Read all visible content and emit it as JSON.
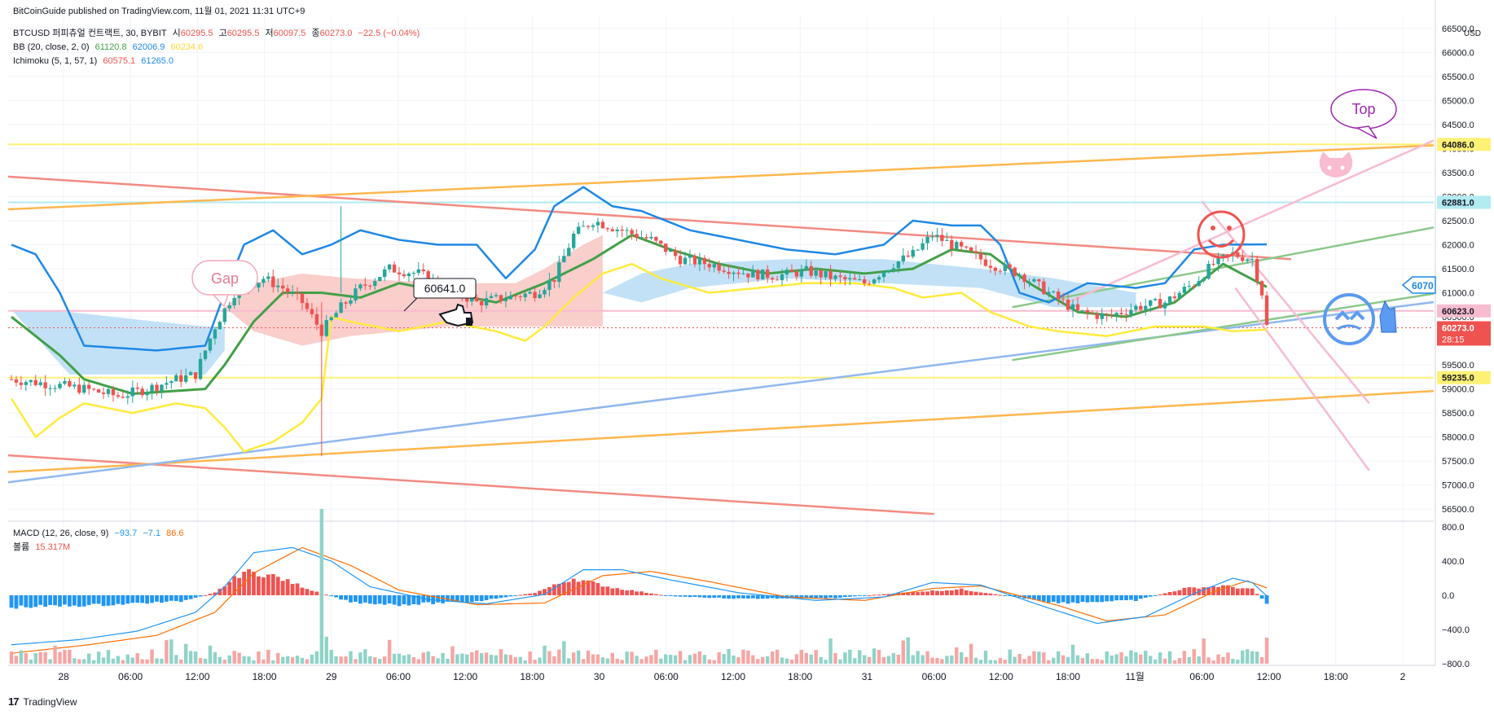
{
  "header": {
    "publish_line": "BitCoinGuide published on TradingView.com, 11월 01, 2021 11:31 UTC+9"
  },
  "main_legend": {
    "symbol": "BTCUSD 퍼피츄얼 컨트랙트, 30, BYBIT",
    "open_label": "시",
    "open": "60295.5",
    "high_label": "고",
    "high": "60295.5",
    "low_label": "저",
    "low": "60097.5",
    "close_label": "종",
    "close": "60273.0",
    "change": "−22.5 (−0.04%)"
  },
  "bb_legend": {
    "label": "BB (20, close, 2, 0)",
    "basis": "61120.8",
    "upper": "62006.9",
    "lower": "60234.6"
  },
  "ichimoku_legend": {
    "label": "Ichimoku (5, 1, 57, 1)",
    "lead1": "60575.1",
    "lead2": "61265.0"
  },
  "macd_legend": {
    "label": "MACD (12, 26, close, 9)",
    "hist": "−93.7",
    "macd": "−7.1",
    "signal": "86.6"
  },
  "volume_legend": {
    "label": "볼륨",
    "value": "15.317M"
  },
  "annotations": {
    "gap_label": "Gap",
    "top_label": "Top",
    "price_note": "60641.0",
    "partial_tag": "6070"
  },
  "footer": {
    "brand": "TradingView",
    "logo_text": "17"
  },
  "colors": {
    "up": "#26a69a",
    "down": "#ef5350",
    "bb_upper": "#1e88e5",
    "bb_basis": "#43a047",
    "bb_lower": "#ffeb3b",
    "cloud_bear": "#f8c6c2",
    "cloud_bull": "#b7dcf5",
    "trend_red": "#f28b82",
    "trend_orange": "#ffb74d",
    "trend_blue": "#90b8ef",
    "trend_green": "#8bc98b",
    "trend_pink": "#f8bbd0",
    "hline_yellow": "#fff176",
    "hline_pink": "#f8bbd0",
    "hline_cyan": "#b2ebf2",
    "macd_line": "#2196f3",
    "signal_line": "#ff6d00",
    "hist_pos": "#ef5350",
    "hist_neg": "#2196f3"
  },
  "icons": [
    "smiley-face-icon",
    "cat-face-icon",
    "blue-bear-face-icon",
    "pointing-hand-icon"
  ],
  "chart_data": [
    {
      "type": "candlestick",
      "title": "BTCUSD 퍼피츄얼 컨트랙트, 30, BYBIT",
      "x_ticks": [
        "28",
        "06:00",
        "12:00",
        "18:00",
        "29",
        "06:00",
        "12:00",
        "18:00",
        "30",
        "06:00",
        "12:00",
        "18:00",
        "31",
        "06:00",
        "12:00",
        "18:00",
        "11월",
        "06:00",
        "12:00",
        "18:00",
        "2"
      ],
      "ylim": [
        56250,
        66750
      ],
      "y_unit": "USD",
      "y_ticks": [
        66500,
        66000,
        65500,
        65000,
        64500,
        64000,
        63500,
        63000,
        62500,
        62000,
        61500,
        61000,
        60500,
        59500,
        59000,
        58500,
        58000,
        57500,
        57000,
        56500
      ],
      "price_tags": [
        {
          "value": "64086.0",
          "color": "#fff176"
        },
        {
          "value": "62881.0",
          "color": "#b2ebf2"
        },
        {
          "value": "60623.0",
          "color": "#f8bbd0"
        },
        {
          "value": "60273.0",
          "color": "#ef5350",
          "countdown": "28:15"
        },
        {
          "value": "59235.0",
          "color": "#fff176"
        }
      ],
      "candle_anchors": [
        [
          0,
          59200
        ],
        [
          8,
          59100
        ],
        [
          15,
          59000
        ],
        [
          22,
          58850
        ],
        [
          28,
          59000
        ],
        [
          34,
          59200
        ],
        [
          38,
          59300
        ],
        [
          42,
          60300
        ],
        [
          46,
          61000
        ],
        [
          52,
          61300
        ],
        [
          56,
          61100
        ],
        [
          60,
          60800
        ],
        [
          64,
          60200
        ],
        [
          68,
          60700
        ],
        [
          72,
          61100
        ],
        [
          78,
          61500
        ],
        [
          84,
          61400
        ],
        [
          90,
          61100
        ],
        [
          96,
          60800
        ],
        [
          102,
          60900
        ],
        [
          108,
          61000
        ],
        [
          112,
          61300
        ],
        [
          116,
          62200
        ],
        [
          120,
          62500
        ],
        [
          126,
          62300
        ],
        [
          132,
          62100
        ],
        [
          138,
          61700
        ],
        [
          144,
          61600
        ],
        [
          152,
          61400
        ],
        [
          158,
          61350
        ],
        [
          164,
          61450
        ],
        [
          170,
          61300
        ],
        [
          176,
          61200
        ],
        [
          182,
          61600
        ],
        [
          186,
          61800
        ],
        [
          190,
          62200
        ],
        [
          196,
          61900
        ],
        [
          202,
          61600
        ],
        [
          208,
          61400
        ],
        [
          214,
          61000
        ],
        [
          220,
          60600
        ],
        [
          226,
          60500
        ],
        [
          232,
          60700
        ],
        [
          238,
          60800
        ],
        [
          244,
          61200
        ],
        [
          248,
          61600
        ],
        [
          252,
          61800
        ],
        [
          256,
          61700
        ],
        [
          258,
          61000
        ],
        [
          259,
          60300
        ]
      ],
      "total_bars": 260,
      "bb_upper_anchors": [
        [
          0,
          62000
        ],
        [
          5,
          61800
        ],
        [
          10,
          61000
        ],
        [
          15,
          59900
        ],
        [
          30,
          59800
        ],
        [
          40,
          59900
        ],
        [
          44,
          61000
        ],
        [
          48,
          62000
        ],
        [
          54,
          62300
        ],
        [
          60,
          61800
        ],
        [
          66,
          62000
        ],
        [
          72,
          62300
        ],
        [
          80,
          62100
        ],
        [
          88,
          62000
        ],
        [
          96,
          62000
        ],
        [
          102,
          61300
        ],
        [
          108,
          61900
        ],
        [
          112,
          62800
        ],
        [
          118,
          63200
        ],
        [
          124,
          62800
        ],
        [
          130,
          62700
        ],
        [
          140,
          62300
        ],
        [
          150,
          62100
        ],
        [
          160,
          61900
        ],
        [
          170,
          61800
        ],
        [
          180,
          62000
        ],
        [
          186,
          62500
        ],
        [
          194,
          62400
        ],
        [
          200,
          62400
        ],
        [
          204,
          62000
        ],
        [
          208,
          61000
        ],
        [
          214,
          60800
        ],
        [
          222,
          61200
        ],
        [
          232,
          61100
        ],
        [
          238,
          61200
        ],
        [
          244,
          61900
        ],
        [
          250,
          62000
        ],
        [
          259,
          62006.9
        ]
      ],
      "bb_basis_anchors": [
        [
          0,
          60500
        ],
        [
          10,
          59700
        ],
        [
          15,
          59200
        ],
        [
          25,
          58900
        ],
        [
          40,
          59000
        ],
        [
          44,
          59500
        ],
        [
          50,
          60400
        ],
        [
          56,
          61000
        ],
        [
          64,
          61000
        ],
        [
          72,
          60900
        ],
        [
          80,
          61200
        ],
        [
          90,
          61000
        ],
        [
          100,
          60800
        ],
        [
          110,
          61200
        ],
        [
          120,
          61700
        ],
        [
          128,
          62200
        ],
        [
          136,
          61900
        ],
        [
          146,
          61600
        ],
        [
          156,
          61400
        ],
        [
          166,
          61500
        ],
        [
          176,
          61400
        ],
        [
          186,
          61500
        ],
        [
          194,
          61900
        ],
        [
          202,
          61800
        ],
        [
          210,
          61200
        ],
        [
          220,
          60600
        ],
        [
          230,
          60500
        ],
        [
          240,
          60800
        ],
        [
          250,
          61600
        ],
        [
          259,
          61120.8
        ]
      ],
      "bb_lower_anchors": [
        [
          0,
          58800
        ],
        [
          5,
          58000
        ],
        [
          10,
          58400
        ],
        [
          15,
          58700
        ],
        [
          25,
          58500
        ],
        [
          34,
          58700
        ],
        [
          40,
          58600
        ],
        [
          44,
          58200
        ],
        [
          48,
          57700
        ],
        [
          54,
          57900
        ],
        [
          60,
          58300
        ],
        [
          64,
          58800
        ],
        [
          66,
          60500
        ],
        [
          70,
          60400
        ],
        [
          80,
          60200
        ],
        [
          90,
          60400
        ],
        [
          100,
          60200
        ],
        [
          106,
          60000
        ],
        [
          110,
          60300
        ],
        [
          116,
          60900
        ],
        [
          122,
          61400
        ],
        [
          128,
          61600
        ],
        [
          134,
          61300
        ],
        [
          144,
          61000
        ],
        [
          154,
          61100
        ],
        [
          164,
          61200
        ],
        [
          174,
          61200
        ],
        [
          182,
          61100
        ],
        [
          188,
          60900
        ],
        [
          196,
          61000
        ],
        [
          202,
          60600
        ],
        [
          210,
          60300
        ],
        [
          216,
          60200
        ],
        [
          226,
          60100
        ],
        [
          236,
          60300
        ],
        [
          246,
          60300
        ],
        [
          252,
          60200
        ],
        [
          259,
          60234.6
        ]
      ],
      "cloud_region": "Ichimoku cloud, bearish (pink) between roughly bars 44-122 and bullish (blue) around bars 0-42 and 140-232",
      "trendlines": [
        {
          "color": "#f28b82",
          "from": [
            "27 00:00",
            63700
          ],
          "to": [
            "1 14:00",
            61700
          ]
        },
        {
          "color": "#f28b82",
          "from": [
            "27 00:00",
            57900
          ],
          "to": [
            "31 06:00",
            56400
          ]
        },
        {
          "color": "#ffb74d",
          "from": [
            "27 06:00",
            62600
          ],
          "to": [
            "2 06:00",
            64100
          ]
        },
        {
          "color": "#ffb74d",
          "from": [
            "27 06:00",
            57100
          ],
          "to": [
            "2 06:00",
            59000
          ]
        },
        {
          "color": "#90b8ef",
          "from": [
            "27 00:00",
            56500
          ],
          "to": [
            "2 06:00",
            60900
          ]
        },
        {
          "color": "#8bc98b",
          "from": [
            "31 13:00",
            60700
          ],
          "to": [
            "2 06:00",
            62500
          ]
        },
        {
          "color": "#8bc98b",
          "from": [
            "31 13:00",
            59600
          ],
          "to": [
            "2 06:00",
            61100
          ]
        },
        {
          "color": "#f8bbd0",
          "from": [
            "31 18:00",
            60800
          ],
          "to": [
            "2 06:00",
            64500
          ]
        },
        {
          "color": "#f8bbd0",
          "from": [
            "1 06:00",
            62900
          ],
          "to": [
            "1 21:00",
            58700
          ]
        },
        {
          "color": "#f8bbd0",
          "from": [
            "1 09:00",
            61100
          ],
          "to": [
            "1 21:00",
            57300
          ]
        }
      ],
      "horizontal_lines": [
        64086.0,
        62881.0,
        60623.0,
        59235.0
      ]
    },
    {
      "type": "bar",
      "title": "MACD (12, 26, close, 9)",
      "ylim": [
        -850,
        850
      ],
      "y_ticks": [
        "800.0",
        "400.0",
        "0.0",
        "−400.0",
        "−800.0"
      ],
      "hist_anchors": [
        [
          0,
          -140
        ],
        [
          20,
          -110
        ],
        [
          35,
          -70
        ],
        [
          42,
          30
        ],
        [
          48,
          280
        ],
        [
          54,
          230
        ],
        [
          62,
          60
        ],
        [
          70,
          -80
        ],
        [
          80,
          -110
        ],
        [
          96,
          -70
        ],
        [
          108,
          30
        ],
        [
          116,
          200
        ],
        [
          124,
          90
        ],
        [
          136,
          -10
        ],
        [
          150,
          -40
        ],
        [
          170,
          -30
        ],
        [
          186,
          40
        ],
        [
          196,
          70
        ],
        [
          206,
          -10
        ],
        [
          216,
          -90
        ],
        [
          232,
          -60
        ],
        [
          242,
          80
        ],
        [
          250,
          110
        ],
        [
          256,
          70
        ],
        [
          259,
          -93.7
        ]
      ],
      "macd_anchors": [
        [
          0,
          -580
        ],
        [
          14,
          -520
        ],
        [
          26,
          -420
        ],
        [
          38,
          -200
        ],
        [
          44,
          100
        ],
        [
          50,
          500
        ],
        [
          58,
          560
        ],
        [
          66,
          400
        ],
        [
          74,
          100
        ],
        [
          86,
          -50
        ],
        [
          98,
          -100
        ],
        [
          110,
          10
        ],
        [
          118,
          300
        ],
        [
          126,
          300
        ],
        [
          136,
          180
        ],
        [
          150,
          30
        ],
        [
          166,
          -60
        ],
        [
          180,
          -20
        ],
        [
          190,
          150
        ],
        [
          200,
          120
        ],
        [
          214,
          -150
        ],
        [
          224,
          -330
        ],
        [
          234,
          -250
        ],
        [
          244,
          20
        ],
        [
          252,
          200
        ],
        [
          256,
          150
        ],
        [
          259,
          -7.1
        ]
      ],
      "signal_anchors": [
        [
          0,
          -680
        ],
        [
          16,
          -580
        ],
        [
          30,
          -470
        ],
        [
          42,
          -200
        ],
        [
          50,
          260
        ],
        [
          60,
          560
        ],
        [
          70,
          350
        ],
        [
          80,
          60
        ],
        [
          96,
          -110
        ],
        [
          110,
          -90
        ],
        [
          122,
          230
        ],
        [
          132,
          280
        ],
        [
          144,
          160
        ],
        [
          160,
          -20
        ],
        [
          176,
          -60
        ],
        [
          190,
          80
        ],
        [
          200,
          110
        ],
        [
          216,
          -120
        ],
        [
          226,
          -300
        ],
        [
          238,
          -230
        ],
        [
          248,
          40
        ],
        [
          255,
          170
        ],
        [
          259,
          86.6
        ]
      ]
    },
    {
      "type": "bar",
      "title": "볼륨",
      "last_value": "15.317M"
    }
  ]
}
